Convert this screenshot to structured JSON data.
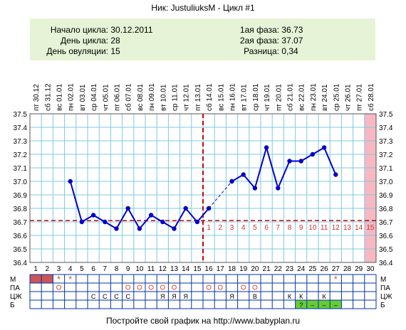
{
  "header": {
    "title": "Ник: JustuliuksM - Цикл #1"
  },
  "info": {
    "left": [
      {
        "label": "Начало цикла:",
        "value": "30.12.2011"
      },
      {
        "label": "День цикла:",
        "value": "28"
      },
      {
        "label": "День овуляции:",
        "value": "15"
      }
    ],
    "right": [
      {
        "label": "1ая фаза:",
        "value": "36.73"
      },
      {
        "label": "2ая фаза:",
        "value": "37.07"
      },
      {
        "label": "Разница:",
        "value": "0,34"
      }
    ]
  },
  "chart_data": {
    "type": "line",
    "x_days": [
      1,
      2,
      3,
      4,
      5,
      6,
      7,
      8,
      9,
      10,
      11,
      12,
      13,
      14,
      15,
      16,
      17,
      18,
      19,
      20,
      21,
      22,
      23,
      24,
      25,
      26,
      27,
      28,
      29,
      30
    ],
    "dates": [
      "пт 30.12",
      "сб 31.12",
      "вс 01.01",
      "пн 02.01",
      "вт 03.01",
      "ср 04.01",
      "чт 05.01",
      "пт 06.01",
      "сб 07.01",
      "вс 08.01",
      "пн 09.01",
      "вт 10.01",
      "ср 11.01",
      "чт 12.01",
      "пт 13.01",
      "сб 14.01",
      "вс 15.01",
      "пн 16.01",
      "вт 17.01",
      "ср 18.01",
      "чт 19.01",
      "пт 20.01",
      "сб 21.01",
      "вс 22.01",
      "пн 23.01",
      "вт 24.01",
      "ср 25.01",
      "чт 26.01",
      "пт 27.01",
      "сб 28.01"
    ],
    "temperatures": [
      null,
      null,
      null,
      37.0,
      36.7,
      36.75,
      36.7,
      36.65,
      36.8,
      36.65,
      36.75,
      36.7,
      36.65,
      36.8,
      36.7,
      36.8,
      null,
      37.0,
      37.05,
      36.95,
      37.25,
      36.95,
      37.15,
      37.15,
      37.2,
      37.25,
      37.05,
      null,
      null,
      null
    ],
    "ylim": [
      36.4,
      37.5
    ],
    "y_ticks": [
      "36.4",
      "36.5",
      "36.6",
      "36.7",
      "36.8",
      "36.9",
      "37.0",
      "37.1",
      "37.2",
      "37.3",
      "37.4",
      "37.5"
    ],
    "x_tick_labels": [
      "1",
      "2",
      "3",
      "4",
      "5",
      "6",
      "7",
      "8",
      "9",
      "10",
      "11",
      "12",
      "13",
      "14",
      "15",
      "16",
      "17",
      "18",
      "19",
      "20",
      "21",
      "22",
      "23",
      "24",
      "25",
      "26",
      "27",
      "28",
      "29",
      "30"
    ],
    "coverline": 36.71,
    "ovulation_day": 15,
    "luteal_day_labels": [
      "1",
      "2",
      "3",
      "4",
      "5",
      "6",
      "7",
      "8",
      "9",
      "10",
      "11",
      "12",
      "13",
      "14",
      "15"
    ],
    "grid": true,
    "colors": {
      "line": "#0000cc",
      "grid": "#7ec8e3",
      "coverline": "#cc0000",
      "highlight": "#f7b8c2",
      "menses": "#cc5555",
      "b_cell": "#66cc33"
    }
  },
  "bottom": {
    "row_labels": [
      "М",
      "ПА",
      "ЦЖ",
      "Б"
    ],
    "M_blocks": [
      1,
      2
    ],
    "M_stars": [
      3,
      4,
      27
    ],
    "PA_circles": [
      3,
      9,
      10,
      11,
      12,
      13,
      16,
      17,
      19,
      20
    ],
    "CM_marks": [
      {
        "day": 6,
        "text": "С"
      },
      {
        "day": 7,
        "text": "С"
      },
      {
        "day": 8,
        "text": "С"
      },
      {
        "day": 9,
        "text": "С"
      },
      {
        "day": 12,
        "text": "Я"
      },
      {
        "day": 13,
        "text": "Я"
      },
      {
        "day": 14,
        "text": "Я"
      },
      {
        "day": 18,
        "text": "Я"
      },
      {
        "day": 20,
        "text": "В"
      },
      {
        "day": 23,
        "text": "К"
      },
      {
        "day": 24,
        "text": "К"
      },
      {
        "day": 26,
        "text": "К"
      }
    ],
    "B_marks": [
      {
        "day": 24,
        "text": "?"
      },
      {
        "day": 25,
        "text": "–"
      },
      {
        "day": 26,
        "text": "–"
      },
      {
        "day": 27,
        "text": "–"
      }
    ]
  },
  "footer": {
    "text": "Постройте свой график на http://www.babyplan.ru"
  }
}
